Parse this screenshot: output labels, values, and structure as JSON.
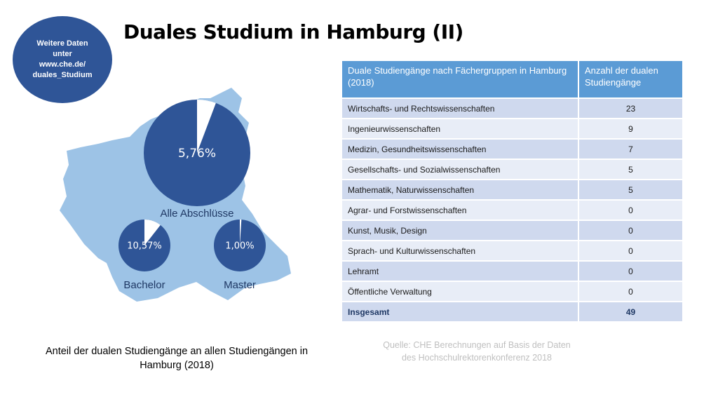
{
  "badge": {
    "line1": "Weitere Daten",
    "line2": "unter",
    "line3": "www.che.de/",
    "line4": "duales_Studium"
  },
  "title": "Duales Studium in Hamburg (II)",
  "colors": {
    "map": "#9dc3e6",
    "pie": "#2f5597",
    "table_header": "#5b9bd5",
    "row_dark": "#cfd9ee",
    "row_light": "#e8edf7"
  },
  "chart_data": [
    {
      "type": "pie",
      "name": "Alle Abschlüsse",
      "label": "Alle Abschlüsse",
      "value_label": "5,76%",
      "value": 5.76,
      "unit": "%"
    },
    {
      "type": "pie",
      "name": "Bachelor",
      "label": "Bachelor",
      "value_label": "10,57%",
      "value": 10.57,
      "unit": "%"
    },
    {
      "type": "pie",
      "name": "Master",
      "label": "Master",
      "value_label": "1,00%",
      "value": 1.0,
      "unit": "%"
    },
    {
      "type": "table",
      "columns": [
        "Duale Studiengänge nach Fächergruppen in Hamburg (2018)",
        "Anzahl der dualen Studiengänge"
      ],
      "rows": [
        [
          "Wirtschafts- und Rechtswissenschaften",
          23
        ],
        [
          "Ingenieurwissenschaften",
          9
        ],
        [
          "Medizin, Gesundheitswissenschaften",
          7
        ],
        [
          "Gesellschafts- und Sozialwissenschaften",
          5
        ],
        [
          "Mathematik, Naturwissenschaften",
          5
        ],
        [
          "Agrar- und Forstwissenschaften",
          0
        ],
        [
          "Kunst, Musik, Design",
          0
        ],
        [
          "Sprach- und Kulturwissenschaften",
          0
        ],
        [
          "Lehramt",
          0
        ],
        [
          "Öffentliche Verwaltung",
          0
        ]
      ],
      "total": [
        "Insgesamt",
        49
      ]
    }
  ],
  "caption": {
    "line1": "Anteil der dualen Studiengänge an allen Studiengängen in",
    "line2": "Hamburg (2018)"
  },
  "source": {
    "line1": "Quelle: CHE Berechnungen auf Basis der Daten",
    "line2": "des Hochschulrektorenkonferenz 2018"
  }
}
